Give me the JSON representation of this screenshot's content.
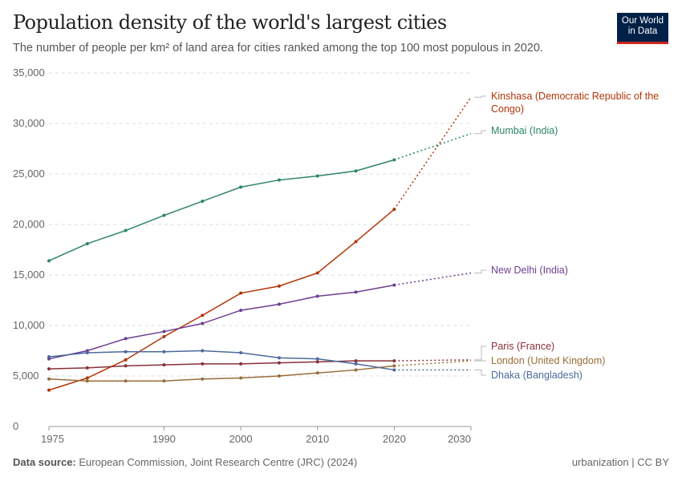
{
  "header": {
    "title": "Population density of the world's largest cities",
    "subtitle": "The number of people per km² of land area for cities ranked among the top 100 most populous in 2020.",
    "logo": "Our World in Data"
  },
  "footer": {
    "source_label": "Data source:",
    "source": "European Commission, Joint Research Centre (JRC) (2024)",
    "license": "urbanization | CC BY"
  },
  "chart_data": {
    "type": "line",
    "title": "Population density of the world's largest cities",
    "x": [
      1975,
      1980,
      1985,
      1990,
      1995,
      2000,
      2005,
      2010,
      2015,
      2020,
      2030
    ],
    "projection_from": 2020,
    "xlim": [
      1975,
      2030
    ],
    "ylim": [
      0,
      35000
    ],
    "x_ticks": [
      "1975",
      "1990",
      "2000",
      "2010",
      "2020",
      "2030"
    ],
    "y_ticks": [
      "0",
      "5,000",
      "10,000",
      "15,000",
      "20,000",
      "25,000",
      "30,000",
      "35,000"
    ],
    "grid": "horizontal dashed",
    "legend": "right (line end labels)",
    "series": [
      {
        "name": "Kinshasa (Democratic Republic of the Congo)",
        "color": "#b13507",
        "values": [
          3600,
          4800,
          6600,
          8900,
          11000,
          13200,
          13900,
          15200,
          18300,
          21500,
          32600
        ]
      },
      {
        "name": "Mumbai (India)",
        "color": "#2c8465",
        "values": [
          16400,
          18100,
          19400,
          20900,
          22300,
          23700,
          24400,
          24800,
          25300,
          26400,
          29000
        ]
      },
      {
        "name": "New Delhi (India)",
        "color": "#6d3e91",
        "values": [
          6700,
          7500,
          8700,
          9400,
          10200,
          11500,
          12100,
          12900,
          13300,
          14000,
          15200
        ]
      },
      {
        "name": "Paris (France)",
        "color": "#883039",
        "values": [
          5700,
          5800,
          6000,
          6100,
          6200,
          6200,
          6300,
          6400,
          6500,
          6500,
          6600
        ]
      },
      {
        "name": "London (United Kingdom)",
        "color": "#996d39",
        "values": [
          4700,
          4500,
          4500,
          4500,
          4700,
          4800,
          5000,
          5300,
          5600,
          6000,
          6500
        ]
      },
      {
        "name": "Dhaka (Bangladesh)",
        "color": "#4c6a9c",
        "values": [
          6900,
          7300,
          7400,
          7400,
          7500,
          7300,
          6800,
          6700,
          6200,
          5600,
          5600
        ]
      }
    ]
  }
}
